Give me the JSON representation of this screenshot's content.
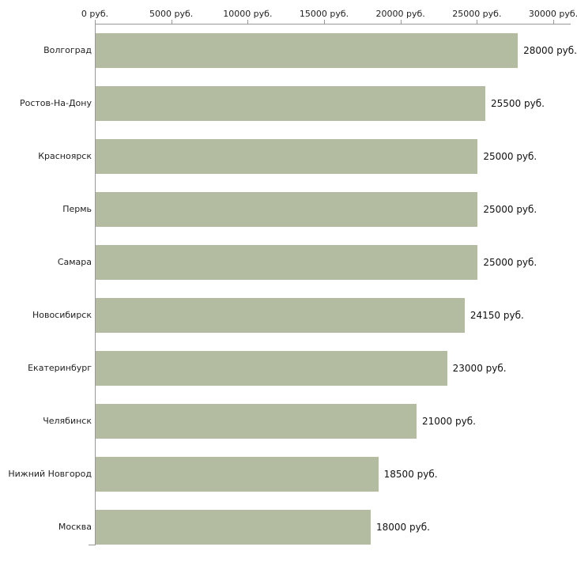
{
  "chart_data": {
    "type": "bar",
    "orientation": "horizontal",
    "title": "",
    "xlabel": "",
    "ylabel": "",
    "grid": false,
    "legend": null,
    "xlim": [
      0,
      30000
    ],
    "x_ticks": [
      0,
      5000,
      10000,
      15000,
      20000,
      25000,
      30000
    ],
    "x_tick_labels": [
      "0 руб.",
      "5000 руб.",
      "10000 руб.",
      "15000 руб.",
      "20000 руб.",
      "25000 руб.",
      "30000 руб."
    ],
    "categories": [
      "Волгоград",
      "Ростов-На-Дону",
      "Красноярск",
      "Пермь",
      "Самара",
      "Новосибирск",
      "Екатеринбург",
      "Челябинск",
      "Нижний Новгород",
      "Москва"
    ],
    "values": [
      28000,
      25500,
      25000,
      25000,
      25000,
      24150,
      23000,
      21000,
      18500,
      18000
    ],
    "value_labels": [
      "28000 руб.",
      "25500 руб.",
      "25000 руб.",
      "25000 руб.",
      "25000 руб.",
      "24150 руб.",
      "23000 руб.",
      "21000 руб.",
      "18500 руб.",
      "18000 руб."
    ],
    "bar_color": "#b3bca0",
    "axis_color": "#999999"
  }
}
